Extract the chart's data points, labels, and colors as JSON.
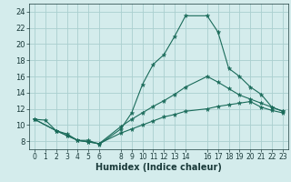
{
  "xlabel": "Humidex (Indice chaleur)",
  "bg_color": "#d4ecec",
  "grid_color": "#aacfcf",
  "line_color": "#1a6b5a",
  "xlim": [
    -0.5,
    23.5
  ],
  "ylim": [
    7.0,
    25.0
  ],
  "xticks": [
    0,
    1,
    2,
    3,
    4,
    5,
    6,
    8,
    9,
    10,
    11,
    12,
    13,
    14,
    16,
    17,
    18,
    19,
    20,
    21,
    22,
    23
  ],
  "yticks": [
    8,
    10,
    12,
    14,
    16,
    18,
    20,
    22,
    24
  ],
  "series1_x": [
    0,
    1,
    2,
    3,
    4,
    5,
    6,
    8,
    9,
    10,
    11,
    12,
    13,
    14,
    16,
    17,
    18,
    19,
    20,
    21,
    22,
    23
  ],
  "series1_y": [
    10.7,
    10.6,
    9.3,
    8.9,
    8.1,
    8.1,
    7.6,
    9.5,
    11.5,
    15.0,
    17.5,
    18.7,
    21.0,
    23.5,
    23.5,
    21.5,
    17.0,
    16.0,
    14.7,
    13.8,
    12.2,
    11.7
  ],
  "series2_x": [
    0,
    2,
    3,
    4,
    5,
    6,
    8,
    9,
    10,
    11,
    12,
    13,
    14,
    16,
    17,
    18,
    19,
    20,
    21,
    22,
    23
  ],
  "series2_y": [
    10.7,
    9.3,
    8.7,
    8.1,
    7.9,
    7.7,
    9.8,
    10.7,
    11.5,
    12.3,
    13.0,
    13.8,
    14.7,
    16.0,
    15.3,
    14.5,
    13.7,
    13.2,
    12.7,
    12.2,
    11.7
  ],
  "series3_x": [
    0,
    2,
    3,
    4,
    5,
    6,
    8,
    9,
    10,
    11,
    12,
    13,
    14,
    16,
    17,
    18,
    19,
    20,
    21,
    22,
    23
  ],
  "series3_y": [
    10.7,
    9.3,
    8.7,
    8.1,
    7.9,
    7.7,
    9.0,
    9.5,
    10.0,
    10.5,
    11.0,
    11.3,
    11.7,
    12.0,
    12.3,
    12.5,
    12.7,
    12.9,
    12.2,
    11.8,
    11.5
  ]
}
